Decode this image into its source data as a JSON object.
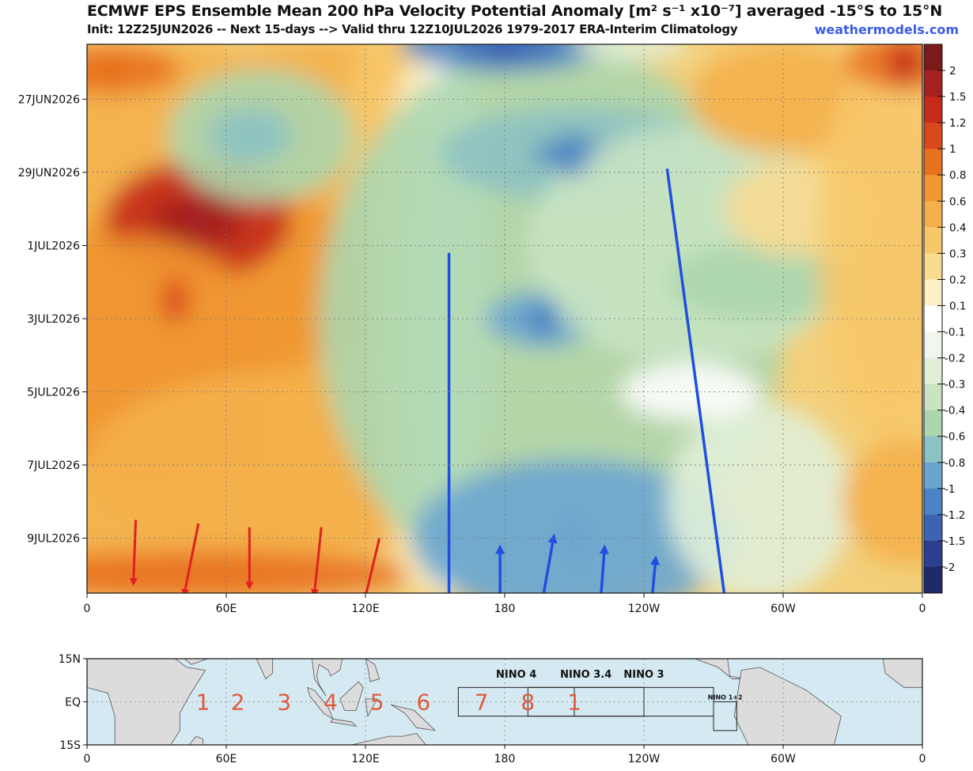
{
  "header": {
    "title": "ECMWF EPS Ensemble Mean 200 hPa Velocity Potential Anomaly [m² s⁻¹ x10⁻⁷] averaged -15°S to 15°N",
    "subtitle": "Init: 12Z25JUN2026 -- Next 15-days --> Valid thru 12Z10JUL2026 1979-2017 ERA-Interim Climatology",
    "site": "weathermodels.com"
  },
  "chart_data": [
    {
      "type": "heatmap",
      "title": "ECMWF EPS Ensemble Mean 200 hPa Velocity Potential Anomaly [m² s⁻¹ x10⁻⁷] averaged -15°S to 15°N",
      "x_axis": {
        "ticks": [
          "0",
          "60E",
          "120E",
          "180",
          "120W",
          "60W",
          "0"
        ],
        "tick_values": [
          0,
          60,
          120,
          180,
          240,
          300,
          360
        ],
        "range": [
          0,
          360
        ]
      },
      "y_axis": {
        "ticks": [
          "27JUN2026",
          "29JUN2026",
          "1JUL2026",
          "3JUL2026",
          "5JUL2026",
          "7JUL2026",
          "9JUL2026"
        ],
        "tick_values": [
          2,
          4,
          6,
          8,
          10,
          12,
          14
        ],
        "range": [
          0.5,
          15.5
        ]
      },
      "colorbar": {
        "levels": [
          "2",
          "1.5",
          "1.2",
          "1",
          "0.8",
          "0.6",
          "0.4",
          "0.3",
          "0.2",
          "0.1",
          "-0.1",
          "-0.2",
          "-0.3",
          "-0.4",
          "-0.6",
          "-0.8",
          "-1",
          "-1.2",
          "-1.5",
          "-2"
        ],
        "colors": [
          "#7a1a1a",
          "#a52020",
          "#c42b1a",
          "#d9481a",
          "#e8701f",
          "#f09632",
          "#f4b04a",
          "#f7c86a",
          "#f9dc92",
          "#fcefc4",
          "#ffffff",
          "#f2f7ec",
          "#e1efd8",
          "#c9e4c3",
          "#acd6ad",
          "#8dc2c2",
          "#6aa5d0",
          "#4a84c4",
          "#3d63b3",
          "#2c3f8e",
          "#1f2a6b"
        ]
      },
      "anomaly_centers": [
        {
          "lon": 48,
          "day": 5.3,
          "value": 1.6
        },
        {
          "lon": 38,
          "day": 7.5,
          "value": 1.0
        },
        {
          "lon": 10,
          "day": 1.2,
          "value": 0.9
        },
        {
          "lon": 352,
          "day": 1.0,
          "value": 1.2
        },
        {
          "lon": 180,
          "day": 0.5,
          "value": -1.4
        },
        {
          "lon": 210,
          "day": 3.5,
          "value": -1.2
        },
        {
          "lon": 197,
          "day": 8.0,
          "value": -1.1
        },
        {
          "lon": 210,
          "day": 14.0,
          "value": -0.9
        },
        {
          "lon": 75,
          "day": 3.0,
          "value": -0.7
        }
      ],
      "annotations": {
        "red_arrows": [
          {
            "from": [
              21,
              13.5
            ],
            "to": [
              20,
              15.2
            ]
          },
          {
            "from": [
              48,
              13.6
            ],
            "to": [
              42,
              15.5
            ]
          },
          {
            "from": [
              70,
              13.7
            ],
            "to": [
              70,
              15.3
            ]
          },
          {
            "from": [
              101,
              13.7
            ],
            "to": [
              98,
              15.5
            ]
          },
          {
            "from": [
              126,
              14.0
            ],
            "to": [
              120,
              15.6
            ]
          }
        ],
        "blue_arrows": [
          {
            "from": [
              156,
              6.2
            ],
            "to": [
              156,
              15.8
            ]
          },
          {
            "from": [
              178,
              16.0
            ],
            "to": [
              178,
              14.3
            ]
          },
          {
            "from": [
              196,
              15.8
            ],
            "to": [
              201,
              14.0
            ]
          },
          {
            "from": [
              221,
              16.0
            ],
            "to": [
              223,
              14.3
            ]
          },
          {
            "from": [
              243,
              16.0
            ],
            "to": [
              245,
              14.6
            ]
          },
          {
            "from": [
              250,
              3.9
            ],
            "to": [
              275,
              15.7
            ]
          }
        ]
      }
    },
    {
      "type": "map",
      "x_axis": {
        "ticks": [
          "0",
          "60E",
          "120E",
          "180",
          "120W",
          "60W",
          "0"
        ],
        "range": [
          0,
          360
        ]
      },
      "y_axis": {
        "ticks": [
          "15N",
          "EQ",
          "15S"
        ],
        "range": [
          -15,
          15
        ]
      },
      "regions": [
        {
          "label": "NINO 4",
          "lon": [
            160,
            210
          ],
          "lat": [
            -5,
            5
          ]
        },
        {
          "label": "NINO 3.4",
          "lon": [
            190,
            240
          ],
          "lat": [
            -5,
            5
          ]
        },
        {
          "label": "NINO 3",
          "lon": [
            210,
            270
          ],
          "lat": [
            -5,
            5
          ]
        },
        {
          "label": "NINO 1+2",
          "lon": [
            270,
            280
          ],
          "lat": [
            -10,
            0
          ]
        }
      ],
      "mjo_phases": [
        {
          "label": "1",
          "lon": 50
        },
        {
          "label": "2",
          "lon": 65
        },
        {
          "label": "3",
          "lon": 85
        },
        {
          "label": "4",
          "lon": 105
        },
        {
          "label": "5",
          "lon": 125
        },
        {
          "label": "6",
          "lon": 145
        },
        {
          "label": "7",
          "lon": 170
        },
        {
          "label": "8",
          "lon": 190
        },
        {
          "label": "1",
          "lon": 210
        }
      ]
    }
  ]
}
